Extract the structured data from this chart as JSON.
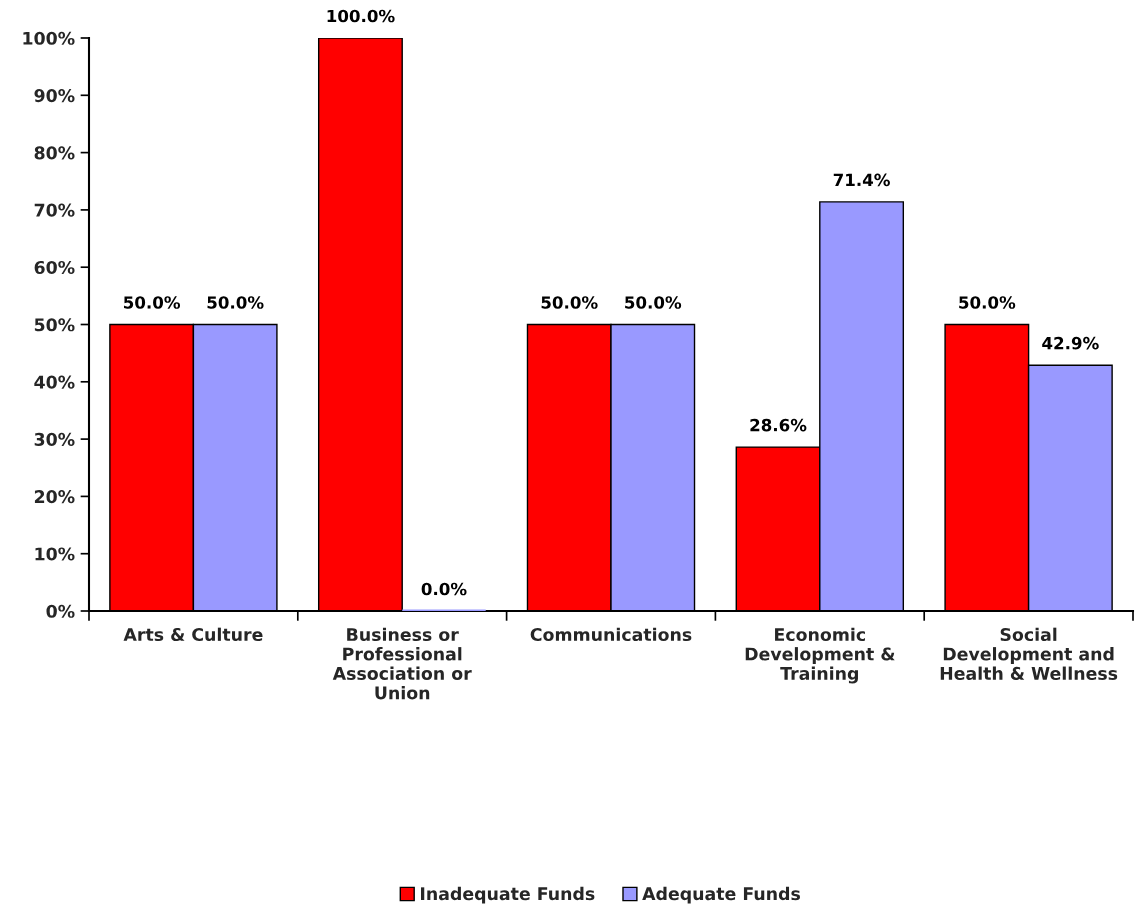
{
  "chart_data": {
    "type": "bar",
    "categories": [
      "Arts & Culture",
      "Business or\nProfessional\nAssociation or\nUnion",
      "Communications",
      "Economic\nDevelopment &\nTraining",
      "Social\nDevelopment and\nHealth & Wellness"
    ],
    "series": [
      {
        "name": "Inadequate Funds",
        "color": "#ff0000",
        "values": [
          50.0,
          100.0,
          50.0,
          28.6,
          50.0
        ],
        "value_labels": [
          "50.0%",
          "100.0%",
          "50.0%",
          "28.6%",
          "50.0%"
        ]
      },
      {
        "name": "Adequate Funds",
        "color": "#9999ff",
        "values": [
          50.0,
          0.0,
          50.0,
          71.4,
          42.9
        ],
        "value_labels": [
          "50.0%",
          "0.0%",
          "50.0%",
          "71.4%",
          "42.9%"
        ]
      }
    ],
    "ylim": [
      0,
      100
    ],
    "yticks": [
      {
        "value": 0,
        "label": "0%"
      },
      {
        "value": 10,
        "label": "10%"
      },
      {
        "value": 20,
        "label": "20%"
      },
      {
        "value": 30,
        "label": "30%"
      },
      {
        "value": 40,
        "label": "40%"
      },
      {
        "value": 50,
        "label": "50%"
      },
      {
        "value": 60,
        "label": "60%"
      },
      {
        "value": 70,
        "label": "70%"
      },
      {
        "value": 80,
        "label": "80%"
      },
      {
        "value": 90,
        "label": "90%"
      },
      {
        "value": 100,
        "label": "100%"
      }
    ],
    "legend": "bottom"
  }
}
